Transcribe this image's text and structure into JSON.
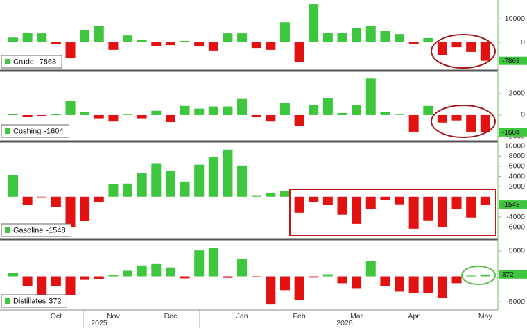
{
  "chart_data": [
    {
      "type": "bar",
      "positive_color": "#3ec63e",
      "negative_color": "#e31212",
      "series": [
        {
          "name": "Crude",
          "values": [
            2000,
            4100,
            3800,
            -900,
            -6800,
            5300,
            6800,
            -3200,
            2900,
            900,
            -1500,
            -1200,
            600,
            -1800,
            -3500,
            3800,
            3800,
            -2400,
            -3200,
            8500,
            -8500,
            16200,
            4100,
            4100,
            6200,
            7100,
            5000,
            3500,
            -600,
            1800,
            -5600,
            -2100,
            -4100,
            -7863
          ]
        }
      ],
      "ylim": [
        -11500,
        18000
      ],
      "yticks": [
        0,
        10000
      ]
    },
    {
      "type": "bar",
      "positive_color": "#3ec63e",
      "negative_color": "#e31212",
      "series": [
        {
          "name": "Cushing",
          "values": [
            100,
            -200,
            -100,
            100,
            1300,
            300,
            -300,
            -600,
            50,
            -300,
            400,
            -650,
            850,
            600,
            800,
            800,
            1500,
            -200,
            -600,
            1100,
            -1000,
            900,
            1550,
            200,
            950,
            3400,
            300,
            50,
            -1550,
            850,
            -700,
            -500,
            -1550,
            -1604
          ]
        }
      ],
      "ylim": [
        -2200,
        4000
      ],
      "yticks": [
        -2000,
        0,
        2000
      ]
    },
    {
      "type": "bar",
      "positive_color": "#3ec63e",
      "negative_color": "#e31212",
      "series": [
        {
          "name": "Gasoline",
          "values": [
            4250,
            -1600,
            -100,
            -2000,
            -6000,
            -4800,
            -1000,
            2500,
            2600,
            4650,
            6600,
            5100,
            3000,
            6300,
            7900,
            9300,
            6150,
            300,
            800,
            1100,
            -3150,
            -1100,
            -1600,
            -3550,
            -5350,
            -2450,
            -700,
            -1500,
            -6300,
            -4650,
            -6000,
            -2450,
            -4100,
            -1548
          ]
        }
      ],
      "ylim": [
        -8100,
        10500
      ],
      "yticks": [
        -6000,
        -4000,
        2000,
        4000,
        6000,
        8000,
        10000
      ]
    },
    {
      "type": "bar",
      "positive_color": "#3ec63e",
      "negative_color": "#e31212",
      "series": [
        {
          "name": "Distillates",
          "values": [
            650,
            -1900,
            -4600,
            -1900,
            -3650,
            -700,
            -550,
            250,
            1100,
            2150,
            2550,
            1750,
            -400,
            5100,
            5650,
            -300,
            3400,
            -100,
            -5550,
            -2700,
            -4600,
            -250,
            400,
            -1350,
            -2450,
            3000,
            -1900,
            -3000,
            -3250,
            -3250,
            -4300,
            -1350,
            150,
            372
          ]
        }
      ],
      "ylim": [
        -6350,
        6900
      ],
      "yticks": [
        -5000,
        5000
      ],
      "categories": [
        null,
        null,
        null,
        "Oct",
        null,
        null,
        null,
        "Nov",
        null,
        null,
        null,
        "Dec",
        null,
        null,
        null,
        null,
        "Jan",
        null,
        null,
        null,
        "Feb",
        null,
        null,
        null,
        "Mar",
        null,
        null,
        null,
        "Apr",
        null,
        null,
        null,
        null,
        "May"
      ],
      "year_labels": [
        "2025",
        "2026"
      ]
    }
  ]
}
